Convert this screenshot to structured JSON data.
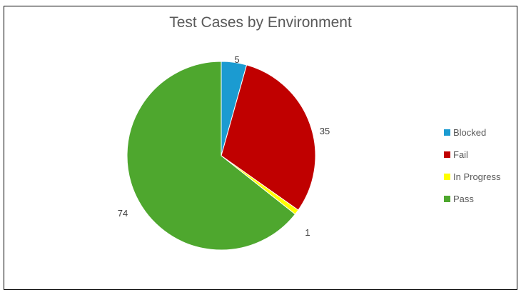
{
  "chart_data": {
    "type": "pie",
    "title": "Test Cases by Environment",
    "categories": [
      "Blocked",
      "Fail",
      "In Progress",
      "Pass"
    ],
    "values": [
      5,
      35,
      1,
      74
    ],
    "colors": [
      "#1B9BD1",
      "#C00000",
      "#FFFF00",
      "#4EA72E"
    ],
    "data_labels": [
      "5",
      "35",
      "1",
      "74"
    ],
    "legend_position": "right",
    "start_angle_deg": 0,
    "direction": "clockwise"
  }
}
